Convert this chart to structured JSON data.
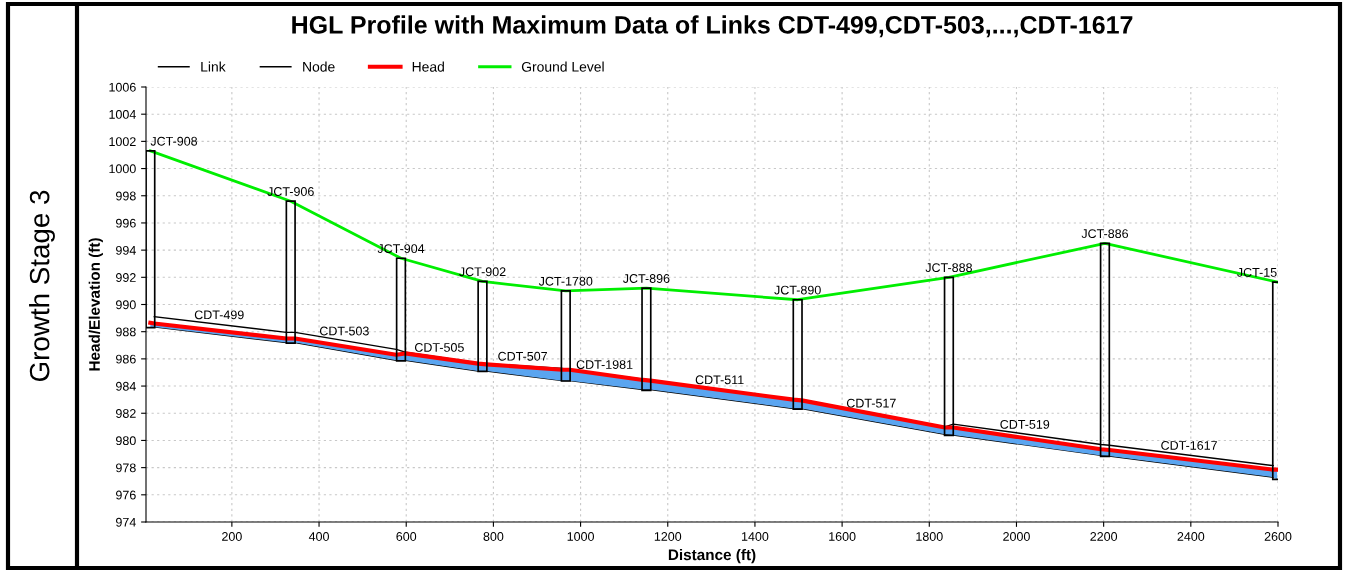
{
  "chart_data": {
    "type": "line",
    "title": "HGL Profile with Maximum Data of Links CDT-499,CDT-503,...,CDT-1617",
    "xlabel": "Distance (ft)",
    "ylabel": "Head/Elevation (ft)",
    "xlim": [
      3,
      2600
    ],
    "xticks": [
      200,
      400,
      600,
      800,
      1000,
      1200,
      1400,
      1600,
      1800,
      2000,
      2200,
      2400,
      2600
    ],
    "ylim": [
      974,
      1006
    ],
    "yticks": [
      974,
      976,
      978,
      980,
      982,
      984,
      986,
      988,
      990,
      992,
      994,
      996,
      998,
      1000,
      1002,
      1004,
      1006
    ],
    "grid": true,
    "legend": "top left",
    "line_style": "solid",
    "marker": "none",
    "series": [
      {
        "name": "Link",
        "color": "#000000",
        "x": [
          22,
          325,
          345,
          577,
          598,
          765,
          784,
          958,
          975,
          1143,
          1160,
          1488,
          1507,
          1836,
          1855,
          2194,
          2213,
          2589
        ],
        "values": [
          989.1,
          987.95,
          987.95,
          986.7,
          986.5,
          985.7,
          985.65,
          985.3,
          985.2,
          984.5,
          984.45,
          983.0,
          983.0,
          981.0,
          981.2,
          979.7,
          979.65,
          978.15
        ]
      },
      {
        "color": "#000000",
        "x": [
          22,
          325,
          345,
          577,
          598,
          765,
          784,
          958,
          975,
          1143,
          1160,
          1488,
          1507,
          1836,
          1855,
          2194,
          2213,
          2589
        ],
        "values": [
          988.35,
          987.2,
          987.2,
          985.9,
          985.9,
          985.1,
          985.1,
          984.4,
          984.4,
          983.75,
          983.75,
          982.35,
          982.35,
          980.45,
          980.4,
          978.9,
          978.85,
          977.3
        ]
      },
      {
        "name": "Node",
        "type": "bar",
        "color": "#000000",
        "x": [
          13,
          335,
          588,
          775,
          966,
          1151,
          1498,
          1845,
          2203,
          2598
        ],
        "base": [
          988.3,
          987.15,
          985.85,
          985.08,
          984.37,
          983.68,
          982.3,
          980.37,
          978.83,
          977.14
        ],
        "values": [
          13.0,
          10.45,
          7.55,
          6.62,
          6.63,
          7.52,
          8.05,
          11.63,
          15.67,
          14.51
        ]
      },
      {
        "name": "Head",
        "color": "#ff0000",
        "x": [
          13,
          22,
          325,
          345,
          577,
          598,
          765,
          784,
          958,
          975,
          1143,
          1160,
          1488,
          1507,
          1836,
          1855,
          2194,
          2213,
          2589,
          2598
        ],
        "values": [
          988.65,
          988.6,
          987.5,
          987.5,
          986.3,
          986.4,
          985.65,
          985.6,
          985.2,
          985.2,
          984.45,
          984.4,
          983.0,
          982.95,
          980.95,
          980.95,
          979.35,
          979.3,
          977.85,
          977.85
        ],
        "lower": [
          988.3,
          988.35,
          987.2,
          987.2,
          985.9,
          985.9,
          985.1,
          985.1,
          984.4,
          984.4,
          983.75,
          983.75,
          982.35,
          982.35,
          980.45,
          980.4,
          978.9,
          978.85,
          977.3,
          977.14
        ],
        "upper": [
          988.65,
          988.6,
          987.5,
          987.5,
          986.3,
          986.4,
          985.65,
          985.6,
          985.2,
          985.2,
          984.45,
          984.4,
          983.0,
          982.95,
          980.95,
          980.95,
          979.35,
          979.3,
          977.85,
          977.85
        ]
      },
      {
        "name": "Ground Level",
        "color": "#00ee00",
        "x": [
          13,
          335,
          588,
          775,
          966,
          1151,
          1498,
          1845,
          2203,
          2598
        ],
        "values": [
          1001.3,
          997.6,
          993.4,
          991.7,
          991.0,
          991.2,
          990.35,
          992.0,
          994.5,
          991.65
        ]
      }
    ],
    "annotations": [
      {
        "text": "JCT-908",
        "x": 13,
        "y": 1001.3
      },
      {
        "text": "JCT-906",
        "x": 335,
        "y": 997.6
      },
      {
        "text": "JCT-904",
        "x": 588,
        "y": 993.4
      },
      {
        "text": "JCT-902",
        "x": 775,
        "y": 991.7
      },
      {
        "text": "JCT-1780",
        "x": 966,
        "y": 991.0
      },
      {
        "text": "JCT-896",
        "x": 1151,
        "y": 991.2
      },
      {
        "text": "JCT-890",
        "x": 1498,
        "y": 990.35
      },
      {
        "text": "JCT-888",
        "x": 1845,
        "y": 992.0
      },
      {
        "text": "JCT-886",
        "x": 2203,
        "y": 994.5
      },
      {
        "text": "JCT-15",
        "x": 2598,
        "y": 991.65
      },
      {
        "text": "CDT-499",
        "x": 171,
        "y": 988.53
      },
      {
        "text": "CDT-503",
        "x": 458,
        "y": 987.34
      },
      {
        "text": "CDT-505",
        "x": 676,
        "y": 986.13
      },
      {
        "text": "CDT-507",
        "x": 867,
        "y": 985.48
      },
      {
        "text": "CDT-1981",
        "x": 1055,
        "y": 984.87
      },
      {
        "text": "CDT-511",
        "x": 1319,
        "y": 983.75
      },
      {
        "text": "CDT-517",
        "x": 1667,
        "y": 982.03
      },
      {
        "text": "CDT-519",
        "x": 2019,
        "y": 980.47
      },
      {
        "text": "CDT-1617",
        "x": 2396,
        "y": 978.92
      },
      "Growth Stage 3"
    ]
  }
}
